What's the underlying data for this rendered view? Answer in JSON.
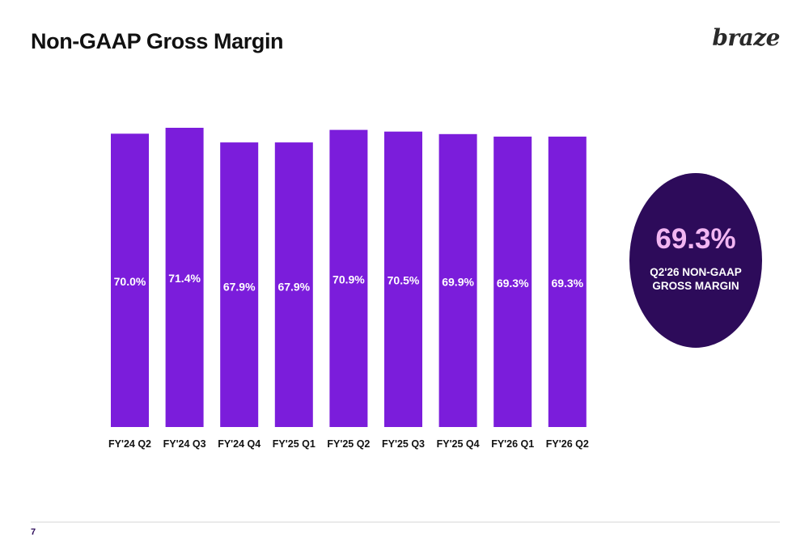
{
  "slide": {
    "title": "Non-GAAP Gross Margin",
    "logo_text": "braze",
    "page_number": "7"
  },
  "callout": {
    "value": "69.3%",
    "caption": "Q2'26 NON-GAAP GROSS MARGIN",
    "background_color": "#2d0b5a",
    "value_color": "#f2b6f2"
  },
  "chart_data": {
    "type": "bar",
    "categories": [
      "FY'24 Q2",
      "FY'24 Q3",
      "FY'24 Q4",
      "FY'25 Q1",
      "FY'25 Q2",
      "FY'25 Q3",
      "FY'25 Q4",
      "FY'26 Q1",
      "FY'26 Q2"
    ],
    "values": [
      70.0,
      71.4,
      67.9,
      67.9,
      70.9,
      70.5,
      69.9,
      69.3,
      69.3
    ],
    "value_labels": [
      "70.0%",
      "71.4%",
      "67.9%",
      "67.9%",
      "70.9%",
      "70.5%",
      "69.9%",
      "69.3%",
      "69.3%"
    ],
    "bar_color": "#7b1ddb",
    "grid": false,
    "legend": "none"
  }
}
